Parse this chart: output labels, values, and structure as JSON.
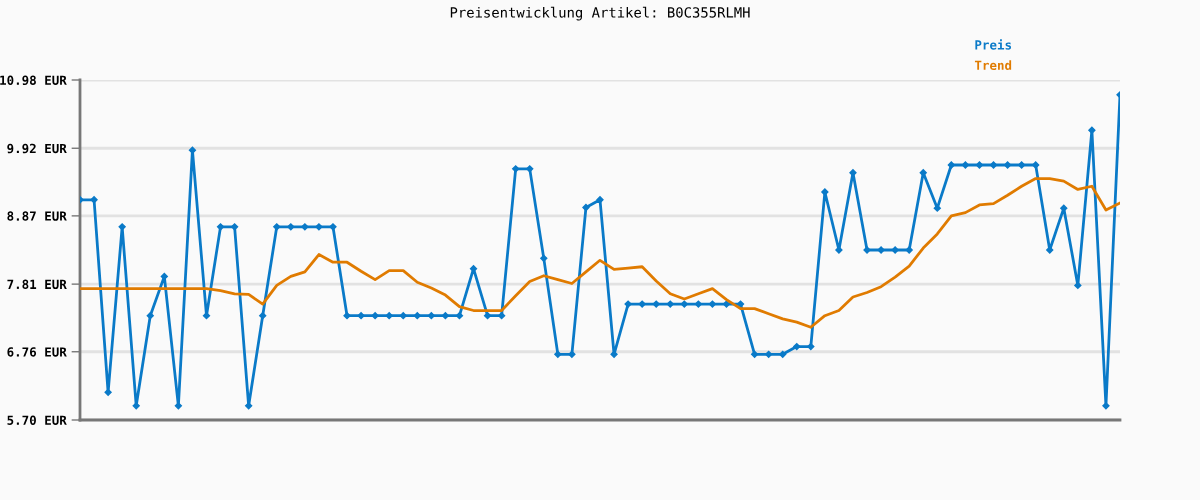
{
  "chart_data": {
    "type": "line",
    "title": "Preisentwicklung Artikel: B0C355RLMH",
    "categories": [
      null,
      null,
      null,
      null,
      null,
      null,
      null,
      null,
      null,
      null,
      null,
      null,
      null,
      null,
      null,
      null,
      null,
      null,
      null,
      null,
      null,
      null,
      null,
      null,
      null,
      null,
      null,
      null,
      null,
      null,
      null,
      null,
      null,
      null,
      null,
      null,
      null,
      null,
      null,
      null,
      null,
      null,
      null,
      null,
      null,
      null,
      null,
      null,
      null,
      null,
      null,
      null,
      null,
      null,
      null,
      null,
      null,
      null,
      null,
      null,
      null,
      null,
      null,
      null,
      null,
      null,
      null,
      null,
      null,
      null,
      null,
      null,
      null,
      null,
      null
    ],
    "series": [
      {
        "name": "Preis",
        "color": "#0a7ac8",
        "marker": "diamond",
        "values": [
          9.12,
          9.12,
          6.13,
          8.7,
          5.92,
          7.32,
          7.93,
          5.92,
          9.89,
          7.32,
          8.7,
          8.7,
          5.92,
          7.32,
          8.7,
          8.7,
          8.7,
          8.7,
          8.7,
          7.32,
          7.32,
          7.32,
          7.32,
          7.32,
          7.32,
          7.32,
          7.32,
          7.32,
          8.05,
          7.32,
          7.32,
          9.6,
          9.6,
          8.21,
          6.72,
          6.72,
          9.0,
          9.12,
          6.72,
          7.5,
          7.5,
          7.5,
          7.5,
          7.5,
          7.5,
          7.5,
          7.5,
          7.5,
          6.72,
          6.72,
          6.72,
          6.84,
          6.84,
          9.24,
          8.34,
          9.54,
          8.34,
          8.34,
          8.34,
          8.34,
          9.54,
          8.99,
          9.66,
          9.66,
          9.66,
          9.66,
          9.66,
          9.66,
          9.66,
          8.34,
          8.99,
          7.79,
          10.2,
          5.92,
          10.75
        ]
      },
      {
        "name": "Trend",
        "color": "#e07b00",
        "marker": "none",
        "values": [
          7.74,
          7.74,
          7.74,
          7.74,
          7.74,
          7.74,
          7.74,
          7.74,
          7.74,
          7.74,
          7.71,
          7.66,
          7.65,
          7.5,
          7.79,
          7.93,
          8.0,
          8.27,
          8.15,
          8.15,
          8.01,
          7.88,
          8.02,
          8.02,
          7.84,
          7.75,
          7.64,
          7.46,
          7.4,
          7.4,
          7.4,
          7.63,
          7.85,
          7.94,
          7.88,
          7.82,
          8.0,
          8.18,
          8.04,
          8.06,
          8.08,
          7.86,
          7.66,
          7.58,
          7.66,
          7.74,
          7.57,
          7.43,
          7.43,
          7.35,
          7.27,
          7.22,
          7.14,
          7.32,
          7.4,
          7.61,
          7.68,
          7.77,
          7.92,
          8.09,
          8.37,
          8.59,
          8.87,
          8.92,
          9.04,
          9.06,
          9.19,
          9.33,
          9.45,
          9.45,
          9.41,
          9.28,
          9.33,
          8.96,
          9.07
        ]
      }
    ],
    "ylim": [
      5.7,
      10.98
    ],
    "yticks": [
      {
        "value": 5.7,
        "label": "5.70 EUR"
      },
      {
        "value": 6.76,
        "label": "6.76 EUR"
      },
      {
        "value": 7.81,
        "label": "7.81 EUR"
      },
      {
        "value": 8.87,
        "label": "8.87 EUR"
      },
      {
        "value": 9.92,
        "label": "9.92 EUR"
      },
      {
        "value": 10.98,
        "label": "10.98 EUR"
      }
    ],
    "grid": "y",
    "legend": "top right",
    "line_style": "solid"
  }
}
